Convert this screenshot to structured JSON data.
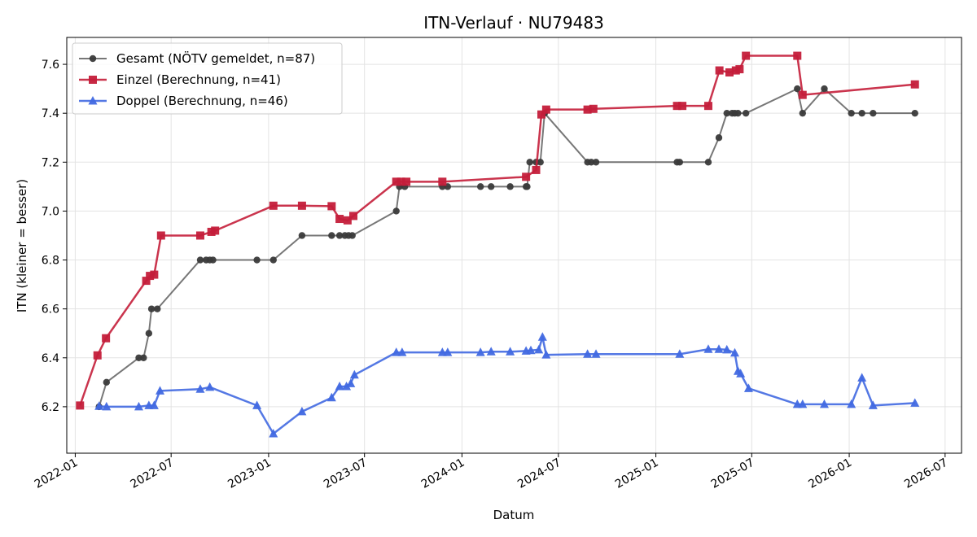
{
  "chart_data": {
    "type": "line",
    "title": "ITN-Verlauf · NU79483",
    "xlabel": "Datum",
    "ylabel": "ITN  (kleiner = besser)",
    "x_type": "date",
    "xlim": [
      "2021-12-16",
      "2026-08-01"
    ],
    "ylim": [
      6.01,
      7.71
    ],
    "x_ticks": [
      "2022-01",
      "2022-07",
      "2023-01",
      "2023-07",
      "2024-01",
      "2024-07",
      "2025-01",
      "2025-07",
      "2026-01",
      "2026-07"
    ],
    "y_ticks": [
      6.2,
      6.4,
      6.6,
      6.8,
      7.0,
      7.2,
      7.4,
      7.6
    ],
    "grid": true,
    "legend_position": "top-left",
    "series": [
      {
        "name": "Gesamt (NÖTV gemeldet, n=87)",
        "color": "#555555",
        "marker": "circle",
        "points": [
          [
            "2022-02-15",
            6.2
          ],
          [
            "2022-03-01",
            6.3
          ],
          [
            "2022-05-01",
            6.4
          ],
          [
            "2022-05-10",
            6.4
          ],
          [
            "2022-05-20",
            6.5
          ],
          [
            "2022-05-25",
            6.6
          ],
          [
            "2022-06-05",
            6.6
          ],
          [
            "2022-08-25",
            6.8
          ],
          [
            "2022-09-05",
            6.8
          ],
          [
            "2022-09-12",
            6.8
          ],
          [
            "2022-09-18",
            6.8
          ],
          [
            "2022-12-10",
            6.8
          ],
          [
            "2023-01-10",
            6.8
          ],
          [
            "2023-03-05",
            6.9
          ],
          [
            "2023-04-30",
            6.9
          ],
          [
            "2023-05-15",
            6.9
          ],
          [
            "2023-05-25",
            6.9
          ],
          [
            "2023-06-01",
            6.9
          ],
          [
            "2023-06-08",
            6.9
          ],
          [
            "2023-08-30",
            7.0
          ],
          [
            "2023-09-05",
            7.1
          ],
          [
            "2023-09-15",
            7.1
          ],
          [
            "2023-11-25",
            7.1
          ],
          [
            "2023-12-05",
            7.1
          ],
          [
            "2024-02-05",
            7.1
          ],
          [
            "2024-02-25",
            7.1
          ],
          [
            "2024-04-01",
            7.1
          ],
          [
            "2024-05-01",
            7.1
          ],
          [
            "2024-05-03",
            7.1
          ],
          [
            "2024-05-08",
            7.2
          ],
          [
            "2024-05-20",
            7.2
          ],
          [
            "2024-05-28",
            7.2
          ],
          [
            "2024-06-05",
            7.4
          ],
          [
            "2024-08-25",
            7.2
          ],
          [
            "2024-09-01",
            7.2
          ],
          [
            "2024-09-10",
            7.2
          ],
          [
            "2025-02-10",
            7.2
          ],
          [
            "2025-02-15",
            7.2
          ],
          [
            "2025-04-10",
            7.2
          ],
          [
            "2025-04-30",
            7.3
          ],
          [
            "2025-05-15",
            7.4
          ],
          [
            "2025-05-25",
            7.4
          ],
          [
            "2025-05-30",
            7.4
          ],
          [
            "2025-06-05",
            7.4
          ],
          [
            "2025-06-20",
            7.4
          ],
          [
            "2025-09-25",
            7.5
          ],
          [
            "2025-10-05",
            7.4
          ],
          [
            "2025-11-15",
            7.5
          ],
          [
            "2026-01-05",
            7.4
          ],
          [
            "2026-01-25",
            7.4
          ],
          [
            "2026-02-15",
            7.4
          ],
          [
            "2026-05-05",
            7.4
          ]
        ]
      },
      {
        "name": "Einzel (Berechnung, n=41)",
        "color": "#c41e3a",
        "marker": "square",
        "points": [
          [
            "2022-01-10",
            6.205
          ],
          [
            "2022-02-12",
            6.41
          ],
          [
            "2022-02-28",
            6.48
          ],
          [
            "2022-05-15",
            6.715
          ],
          [
            "2022-05-22",
            6.735
          ],
          [
            "2022-05-30",
            6.74
          ],
          [
            "2022-06-12",
            6.9
          ],
          [
            "2022-08-25",
            6.9
          ],
          [
            "2022-09-15",
            6.915
          ],
          [
            "2022-09-22",
            6.92
          ],
          [
            "2023-01-10",
            7.022
          ],
          [
            "2023-03-05",
            7.022
          ],
          [
            "2023-04-30",
            7.02
          ],
          [
            "2023-05-15",
            6.968
          ],
          [
            "2023-05-30",
            6.962
          ],
          [
            "2023-06-10",
            6.98
          ],
          [
            "2023-08-30",
            7.12
          ],
          [
            "2023-09-08",
            7.12
          ],
          [
            "2023-09-18",
            7.12
          ],
          [
            "2023-11-25",
            7.12
          ],
          [
            "2024-05-01",
            7.14
          ],
          [
            "2024-05-20",
            7.168
          ],
          [
            "2024-05-30",
            7.395
          ],
          [
            "2024-06-08",
            7.415
          ],
          [
            "2024-08-25",
            7.415
          ],
          [
            "2024-09-05",
            7.418
          ],
          [
            "2025-02-10",
            7.43
          ],
          [
            "2025-02-20",
            7.43
          ],
          [
            "2025-04-10",
            7.43
          ],
          [
            "2025-05-01",
            7.575
          ],
          [
            "2025-05-20",
            7.567
          ],
          [
            "2025-06-01",
            7.575
          ],
          [
            "2025-06-08",
            7.58
          ],
          [
            "2025-06-20",
            7.635
          ],
          [
            "2025-09-25",
            7.635
          ],
          [
            "2025-10-05",
            7.475
          ],
          [
            "2026-05-05",
            7.518
          ]
        ]
      },
      {
        "name": "Doppel (Berechnung, n=46)",
        "color": "#4169e1",
        "marker": "triangle",
        "points": [
          [
            "2022-02-15",
            6.202
          ],
          [
            "2022-03-01",
            6.2
          ],
          [
            "2022-05-01",
            6.2
          ],
          [
            "2022-05-20",
            6.205
          ],
          [
            "2022-05-30",
            6.205
          ],
          [
            "2022-06-10",
            6.265
          ],
          [
            "2022-08-25",
            6.272
          ],
          [
            "2022-09-12",
            6.28
          ],
          [
            "2022-12-10",
            6.205
          ],
          [
            "2023-01-10",
            6.09
          ],
          [
            "2023-03-05",
            6.18
          ],
          [
            "2023-04-30",
            6.237
          ],
          [
            "2023-05-15",
            6.283
          ],
          [
            "2023-05-28",
            6.283
          ],
          [
            "2023-06-05",
            6.295
          ],
          [
            "2023-06-12",
            6.33
          ],
          [
            "2023-08-30",
            6.422
          ],
          [
            "2023-09-10",
            6.422
          ],
          [
            "2023-11-25",
            6.422
          ],
          [
            "2023-12-05",
            6.422
          ],
          [
            "2024-02-05",
            6.422
          ],
          [
            "2024-02-25",
            6.425
          ],
          [
            "2024-04-01",
            6.425
          ],
          [
            "2024-05-01",
            6.428
          ],
          [
            "2024-05-10",
            6.43
          ],
          [
            "2024-05-25",
            6.433
          ],
          [
            "2024-06-01",
            6.485
          ],
          [
            "2024-06-08",
            6.412
          ],
          [
            "2024-08-25",
            6.415
          ],
          [
            "2024-09-10",
            6.415
          ],
          [
            "2025-02-15",
            6.415
          ],
          [
            "2025-04-10",
            6.435
          ],
          [
            "2025-04-30",
            6.435
          ],
          [
            "2025-05-15",
            6.433
          ],
          [
            "2025-05-30",
            6.42
          ],
          [
            "2025-06-05",
            6.345
          ],
          [
            "2025-06-10",
            6.335
          ],
          [
            "2025-06-25",
            6.275
          ],
          [
            "2025-09-25",
            6.21
          ],
          [
            "2025-10-05",
            6.21
          ],
          [
            "2025-11-15",
            6.21
          ],
          [
            "2026-01-05",
            6.21
          ],
          [
            "2026-01-25",
            6.318
          ],
          [
            "2026-02-15",
            6.205
          ],
          [
            "2026-05-05",
            6.215
          ]
        ]
      }
    ]
  }
}
